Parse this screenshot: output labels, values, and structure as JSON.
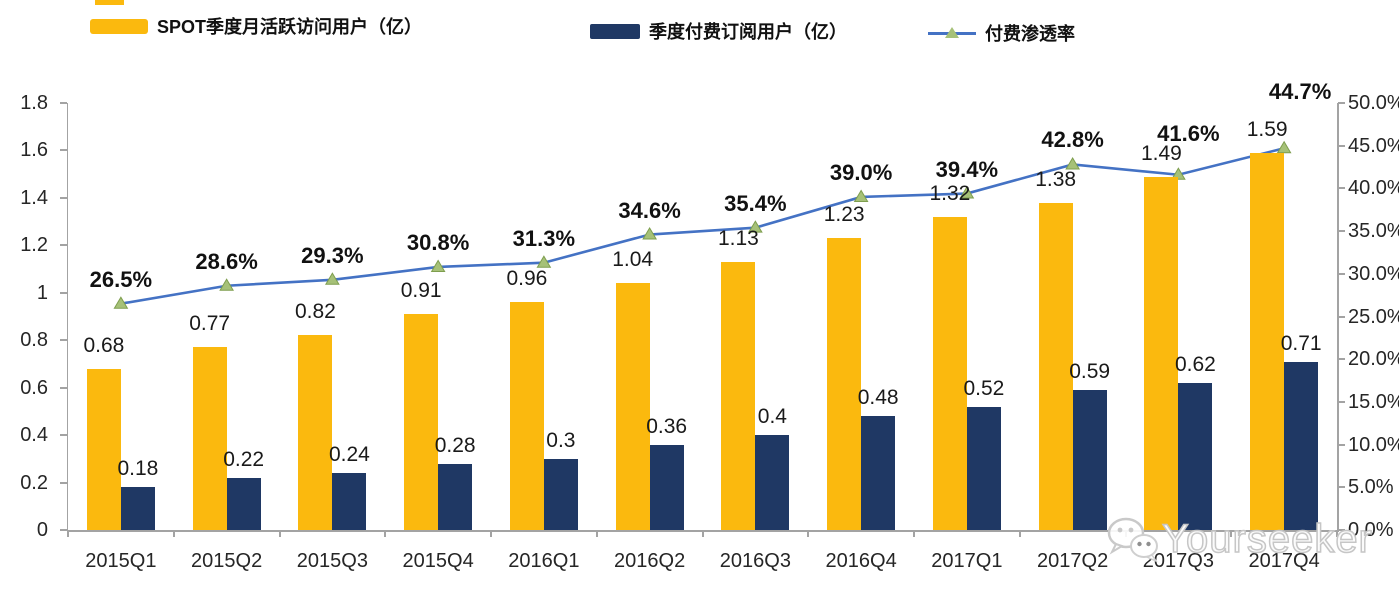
{
  "legend": {
    "items": [
      {
        "label": "SPOT季度月活跃访问用户（亿）",
        "type": "bar",
        "color": "#FBB90E"
      },
      {
        "label": "季度付费订阅用户（亿）",
        "type": "bar",
        "color": "#1F3864"
      },
      {
        "label": "付费渗透率",
        "type": "line",
        "color": "#4472C4",
        "marker_color": "#A6C178"
      }
    ]
  },
  "watermark": {
    "text": "Yourseeker",
    "icon": "wechat-icon"
  },
  "chart_data": {
    "type": "combo",
    "categories": [
      "2015Q1",
      "2015Q2",
      "2015Q3",
      "2015Q4",
      "2016Q1",
      "2016Q2",
      "2016Q3",
      "2016Q4",
      "2017Q1",
      "2017Q2",
      "2017Q3",
      "2017Q4"
    ],
    "series": [
      {
        "name": "SPOT季度月活跃访问用户（亿）",
        "type": "bar",
        "axis": "left",
        "color": "#FBB90E",
        "values": [
          0.68,
          0.77,
          0.82,
          0.91,
          0.96,
          1.04,
          1.13,
          1.23,
          1.32,
          1.38,
          1.49,
          1.59
        ]
      },
      {
        "name": "季度付费订阅用户（亿）",
        "type": "bar",
        "axis": "left",
        "color": "#1F3864",
        "values": [
          0.18,
          0.22,
          0.24,
          0.28,
          0.3,
          0.36,
          0.4,
          0.48,
          0.52,
          0.59,
          0.62,
          0.71
        ]
      },
      {
        "name": "付费渗透率",
        "type": "line",
        "axis": "right",
        "color": "#4472C4",
        "marker": "triangle",
        "marker_color": "#A6C178",
        "values": [
          26.5,
          28.6,
          29.3,
          30.8,
          31.3,
          34.6,
          35.4,
          39.0,
          39.4,
          42.8,
          41.6,
          44.7
        ]
      }
    ],
    "left_axis": {
      "min": 0,
      "max": 1.8,
      "step": 0.2,
      "ticks": [
        "1.8",
        "1.6",
        "1.4",
        "1.2",
        "1",
        "0.8",
        "0.6",
        "0.4",
        "0.2",
        "0"
      ]
    },
    "right_axis": {
      "min": 0,
      "max": 50,
      "step": 5,
      "ticks": [
        "50.0%",
        "45.0%",
        "40.0%",
        "35.0%",
        "30.0%",
        "25.0%",
        "20.0%",
        "15.0%",
        "10.0%",
        "5.0%",
        "0.0%"
      ]
    },
    "grid": false,
    "legend_position": "top"
  }
}
